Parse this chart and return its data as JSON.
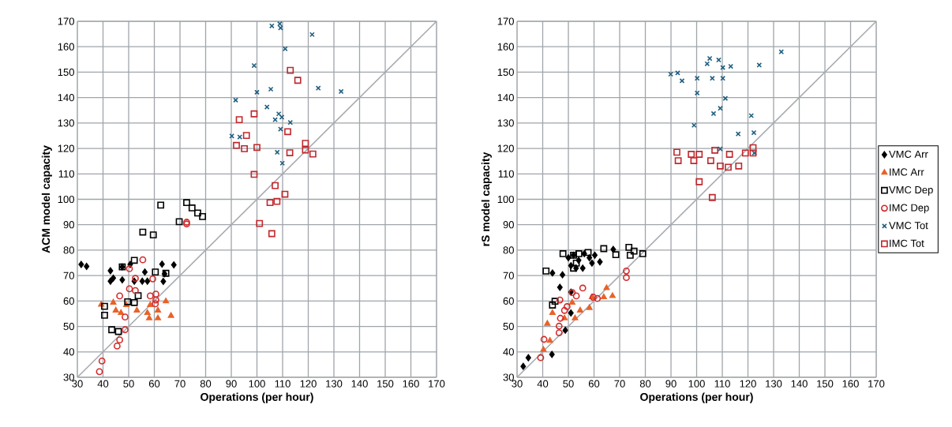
{
  "chart_data": [
    {
      "type": "scatter",
      "xlabel": "Operations (per hour)",
      "ylabel": "ACM model capacity",
      "xlim": [
        30,
        170
      ],
      "ylim": [
        30,
        170
      ],
      "xticks": [
        30,
        40,
        50,
        60,
        70,
        80,
        90,
        100,
        110,
        120,
        130,
        140,
        150,
        160,
        170
      ],
      "yticks": [
        30,
        40,
        50,
        60,
        70,
        80,
        90,
        100,
        110,
        120,
        130,
        140,
        150,
        160,
        170
      ],
      "grid": true,
      "series": [
        {
          "type": "line",
          "color": "#a7abb0",
          "x": [
            30,
            170
          ],
          "values": [
            30,
            170
          ]
        },
        {
          "color": "#000000",
          "marker": "diamond",
          "x": [
            31.5,
            33.6,
            42.9,
            42.9,
            44,
            47.5,
            47.5,
            50.6,
            52.2,
            55.3,
            56.3,
            57.3,
            63,
            63.5,
            64,
            67.6
          ],
          "values": [
            74.4,
            73.6,
            71.9,
            67.8,
            69,
            73.4,
            68.3,
            74.4,
            67.8,
            67.8,
            71.4,
            67.8,
            74.5,
            67.7,
            70.7,
            74.2
          ]
        },
        {
          "color": "#e8622a",
          "marker": "triangle",
          "x": [
            39.3,
            44,
            45,
            47,
            49.1,
            53.2,
            57.3,
            58,
            58.4,
            61.4,
            61.4,
            64.5,
            66.5
          ],
          "values": [
            58.6,
            59.4,
            56.3,
            55.3,
            58.4,
            56.3,
            55.3,
            53.2,
            58.4,
            56.3,
            53.2,
            59.9,
            54.2
          ]
        },
        {
          "color": "#000000",
          "marker": "square",
          "x": [
            62.5,
            72.6,
            74.7,
            76.9,
            78.8,
            69.7,
            55.5,
            59.6,
            52.2,
            47.5,
            60.4,
            64.5,
            49.6,
            52.2,
            53.7,
            40.6,
            40.6,
            43.4,
            46
          ],
          "values": [
            97.7,
            98.7,
            96.6,
            94.6,
            93.2,
            91.2,
            87.1,
            86,
            76,
            73.4,
            71.4,
            70.9,
            59.7,
            59.4,
            62.1,
            57.9,
            54.4,
            48.7,
            48
          ]
        },
        {
          "color": "#d42a2a",
          "marker": "circle",
          "x": [
            55.5,
            50.3,
            52.6,
            59.4,
            50.3,
            52.6,
            46.5,
            58.4,
            60.6,
            60.6,
            60.4,
            48.6,
            48.6,
            46.5,
            45.5,
            39.6,
            38.6,
            72.6,
            72.6
          ],
          "values": [
            76.2,
            72.7,
            68.9,
            68.7,
            64.8,
            64.1,
            62,
            62,
            62.7,
            60.4,
            58.9,
            53.7,
            48.7,
            44.7,
            42.3,
            36.4,
            32.2,
            91,
            90.3
          ]
        },
        {
          "color": "#1f5f80",
          "marker": "cross",
          "x": [
            105.8,
            108.9,
            109.2,
            121.5,
            111,
            98.9,
            91.7,
            100,
            105.4,
            123.9,
            132.8,
            103.9,
            108.5,
            109.7,
            107.1,
            113,
            109.2,
            90.2,
            93.3,
            107.9,
            109.9
          ],
          "values": [
            168.2,
            169,
            167.4,
            164.8,
            159.2,
            152.6,
            139,
            142.1,
            143.3,
            143.7,
            142.4,
            136.3,
            133.6,
            132.3,
            131.3,
            130.2,
            127.6,
            124.9,
            124.5,
            118.5,
            114.2
          ]
        },
        {
          "color": "#c0282d",
          "marker": "square",
          "x": [
            113,
            115.9,
            98.9,
            93.1,
            95.9,
            92,
            95.1,
            100,
            112,
            112.8,
            118.9,
            118.9,
            121.8,
            98.9,
            107.1,
            110.9,
            105.1,
            107.8,
            101,
            105.8
          ],
          "values": [
            150.7,
            146.8,
            133.6,
            131.3,
            125.1,
            121.2,
            119.9,
            120.4,
            126.6,
            118.3,
            122,
            119.4,
            117.8,
            109.8,
            105.4,
            102,
            98.7,
            99.2,
            90.5,
            86.5
          ]
        }
      ]
    },
    {
      "type": "scatter",
      "xlabel": "Operations (per hour)",
      "ylabel": "rS model capacity",
      "xlim": [
        30,
        170
      ],
      "ylim": [
        30,
        170
      ],
      "xticks": [
        30,
        40,
        50,
        60,
        70,
        80,
        90,
        100,
        110,
        120,
        130,
        140,
        150,
        160,
        170
      ],
      "yticks": [
        30,
        40,
        50,
        60,
        70,
        80,
        90,
        100,
        110,
        120,
        130,
        140,
        150,
        160,
        170
      ],
      "grid": true,
      "legend": "right",
      "series": [
        {
          "type": "line",
          "color": "#a7abb0",
          "x": [
            30,
            170
          ],
          "values": [
            30,
            170
          ]
        },
        {
          "name": "VMC Arr",
          "color": "#000000",
          "marker": "diamond",
          "x": [
            32.4,
            34.4,
            43.6,
            48.8,
            46.7,
            43.8,
            47.7,
            51,
            51,
            50,
            52,
            54,
            56.2,
            58.2,
            60.3,
            62.3,
            67.5,
            51,
            53,
            59.2,
            55.6
          ],
          "values": [
            34.3,
            37.7,
            39,
            48.5,
            65.4,
            71,
            70.3,
            63.5,
            55.3,
            77,
            78,
            76,
            78.6,
            77,
            78,
            75.4,
            80.3,
            73.9,
            72.9,
            74.9,
            72.9
          ]
        },
        {
          "name": "IMC Arr",
          "color": "#e8622a",
          "marker": "triangle",
          "x": [
            40.3,
            42.8,
            41.8,
            43.8,
            48.5,
            52.6,
            54.6,
            58.2,
            59.2,
            64.9,
            67.2,
            63.8,
            51.5
          ],
          "values": [
            40.8,
            44.4,
            51.1,
            55.3,
            53.2,
            53.2,
            56.3,
            57.3,
            61.5,
            65.1,
            62,
            61.5,
            59.4
          ]
        },
        {
          "name": "VMC Dep",
          "color": "#000000",
          "marker": "square",
          "x": [
            41.3,
            43.8,
            44.8,
            47.9,
            52,
            54.1,
            57.7,
            63.8,
            68.5,
            73.6,
            75.6,
            74.1,
            79,
            53.1,
            52
          ],
          "values": [
            71.8,
            58.4,
            59.9,
            78.6,
            78,
            78.6,
            79.1,
            80.6,
            78.2,
            81.1,
            79.6,
            78,
            78.6,
            74.9,
            72.9
          ]
        },
        {
          "name": "IMC Dep",
          "color": "#d42a2a",
          "marker": "circle",
          "x": [
            39.2,
            40.5,
            46.4,
            46.4,
            46.9,
            48.5,
            49.5,
            46.7,
            51.5,
            53.1,
            55.6,
            59.7,
            61.3,
            72.6,
            72.6
          ],
          "values": [
            37.7,
            44.9,
            47.5,
            50.1,
            53.2,
            56.3,
            57.8,
            60.4,
            63.3,
            62,
            65.1,
            61.5,
            61,
            71.8,
            69.2
          ]
        },
        {
          "name": "VMC Tot",
          "color": "#1f5f80",
          "marker": "cross",
          "x": [
            89.9,
            92.6,
            94.3,
            100.2,
            100.2,
            99,
            105.1,
            104.1,
            108.6,
            110.2,
            113.3,
            106.1,
            110.2,
            124.4,
            111.2,
            106.6,
            109.2,
            121.3,
            116.2,
            122.3,
            109.2,
            122.5,
            133
          ],
          "values": [
            149.2,
            149.7,
            146.6,
            147.6,
            141.8,
            129.1,
            155.4,
            153.3,
            154.8,
            151.8,
            152.3,
            147.6,
            147.6,
            152.8,
            139.7,
            133.7,
            135.8,
            132.9,
            125.7,
            126.2,
            119.8,
            118.2,
            158
          ]
        },
        {
          "name": "IMC Tot",
          "color": "#c0282d",
          "marker": "square",
          "x": [
            92.3,
            92.8,
            97.9,
            98.9,
            101,
            107.1,
            105.5,
            109.2,
            112.8,
            116.4,
            119,
            122,
            122,
            101,
            106.1,
            112.3
          ],
          "values": [
            118.5,
            115.2,
            117.7,
            115.2,
            117.7,
            119.3,
            115.2,
            113.1,
            117.7,
            113.1,
            118.2,
            120.3,
            118.2,
            106.9,
            100.7,
            112.6
          ]
        }
      ]
    }
  ]
}
